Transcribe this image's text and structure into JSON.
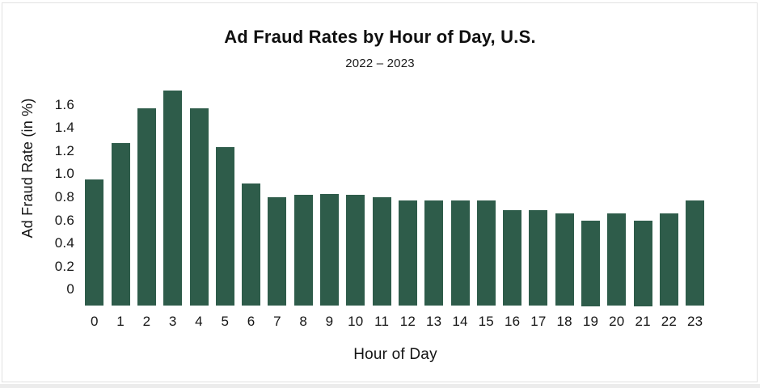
{
  "frame": {
    "background_color": "#ffffff",
    "border_color": "#e2e2e2"
  },
  "chart_data": {
    "type": "bar",
    "title": "Ad Fraud Rates by Hour of Day, U.S.",
    "subtitle": "2022 – 2023",
    "xlabel": "Hour of Day",
    "ylabel": "Ad Fraud Rate (in %)",
    "categories": [
      "0",
      "1",
      "2",
      "3",
      "4",
      "5",
      "6",
      "7",
      "8",
      "9",
      "10",
      "11",
      "12",
      "13",
      "14",
      "15",
      "16",
      "17",
      "18",
      "19",
      "20",
      "21",
      "22",
      "23"
    ],
    "values": [
      0.95,
      1.27,
      1.57,
      1.72,
      1.57,
      1.23,
      0.92,
      0.8,
      0.82,
      0.83,
      0.82,
      0.8,
      0.77,
      0.77,
      0.77,
      0.77,
      0.69,
      0.69,
      0.66,
      0.6,
      0.66,
      0.6,
      0.66,
      0.77
    ],
    "yticks": [
      0,
      0.2,
      0.4,
      0.6,
      0.8,
      1.0,
      1.2,
      1.4,
      1.6
    ],
    "ytick_labels": [
      "0",
      "0.2",
      "0.4",
      "0.6",
      "0.8",
      "1.0",
      "1.2",
      "1.4",
      "1.6"
    ],
    "ylim": [
      0,
      1.8
    ],
    "bar_color": "#2e5c4a",
    "text_color": "#141414",
    "grid": false,
    "legend": false
  }
}
